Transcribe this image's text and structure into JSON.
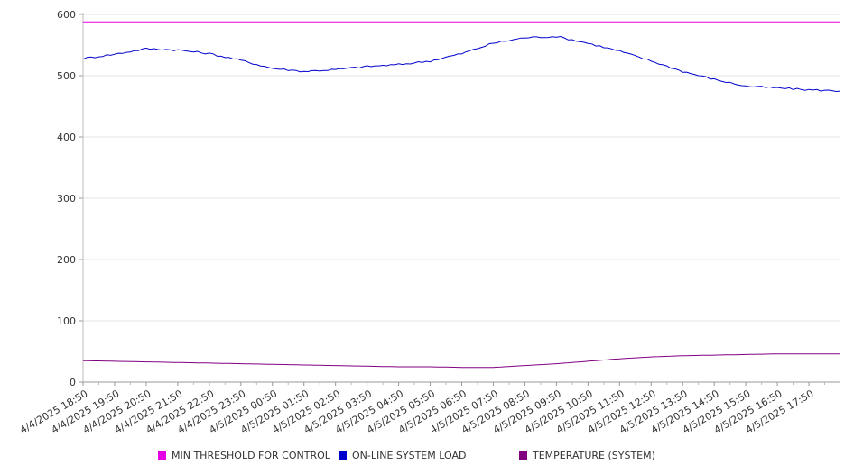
{
  "chart_data": {
    "type": "line",
    "title": "",
    "xlabel": "",
    "ylabel": "",
    "ylim": [
      0,
      600
    ],
    "y_ticks": [
      0,
      100,
      200,
      300,
      400,
      500,
      600
    ],
    "x_tick_labels": [
      "4/4/2025 18:50",
      "4/4/2025 19:50",
      "4/4/2025 20:50",
      "4/4/2025 21:50",
      "4/4/2025 22:50",
      "4/4/2025 23:50",
      "4/5/2025 00:50",
      "4/5/2025 01:50",
      "4/5/2025 02:50",
      "4/5/2025 03:50",
      "4/5/2025 04:50",
      "4/5/2025 05:50",
      "4/5/2025 06:50",
      "4/5/2025 07:50",
      "4/5/2025 08:50",
      "4/5/2025 09:50",
      "4/5/2025 10:50",
      "4/5/2025 11:50",
      "4/5/2025 12:50",
      "4/5/2025 13:50",
      "4/5/2025 14:50",
      "4/5/2025 15:50",
      "4/5/2025 16:50",
      "4/5/2025 17:50"
    ],
    "grid": "horizontal",
    "legend_position": "bottom",
    "series": [
      {
        "name": "MIN THRESHOLD FOR CONTROL",
        "color": "#e600e6",
        "values": [
          588,
          588,
          588,
          588,
          588,
          588,
          588,
          588,
          588,
          588,
          588,
          588,
          588,
          588,
          588,
          588,
          588,
          588,
          588,
          588,
          588,
          588,
          588,
          588,
          588
        ]
      },
      {
        "name": "ON-LINE SYSTEM LOAD",
        "color": "#0000cc",
        "values": [
          528,
          535,
          544,
          542,
          536,
          525,
          512,
          507,
          510,
          515,
          518,
          524,
          536,
          553,
          562,
          564,
          553,
          540,
          524,
          507,
          494,
          483,
          480,
          477,
          475
        ]
      },
      {
        "name": "TEMPERATURE (SYSTEM)",
        "color": "#800080",
        "values": [
          35,
          34,
          33,
          32,
          31,
          30,
          29,
          28,
          27,
          26,
          25,
          25,
          24,
          24,
          27,
          30,
          34,
          38,
          41,
          43,
          44,
          45,
          46,
          46,
          46
        ]
      }
    ]
  }
}
